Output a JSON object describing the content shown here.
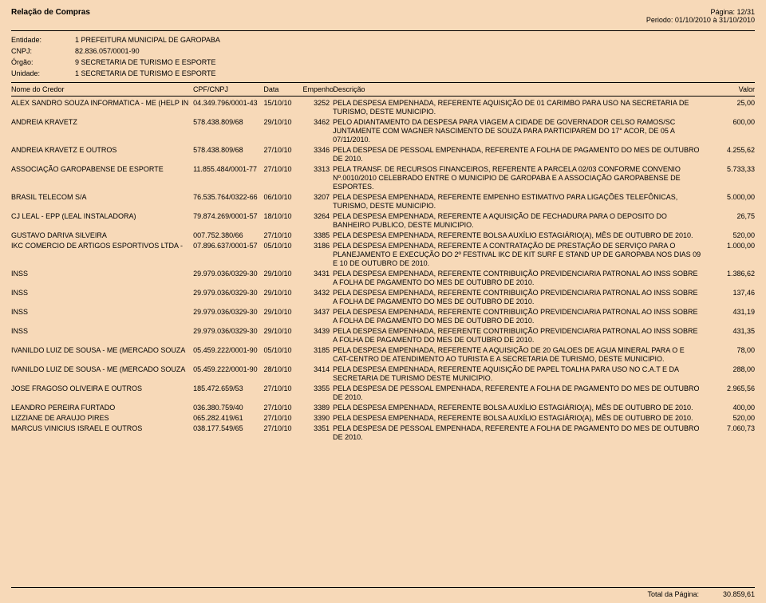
{
  "colors": {
    "page_background": "#f7d9b8",
    "text": "#000000",
    "divider": "#000000"
  },
  "typography": {
    "base_font_size_pt": 7,
    "title_font_size_pt": 8,
    "font_family": "Arial"
  },
  "page_meta": {
    "title": "Relação de Compras",
    "page_label": "Página: 12/31",
    "period_label": "Periodo: 01/10/2010 à 31/10/2010"
  },
  "entity": {
    "entidade_label": "Entidade:",
    "entidade_value": "1 PREFEITURA MUNICIPAL DE GAROPABA",
    "cnpj_label": "CNPJ:",
    "cnpj_value": "82.836.057/0001-90",
    "orgao_label": "Órgão:",
    "orgao_value": "9 SECRETARIA DE TURISMO E ESPORTE",
    "unidade_label": "Unidade:",
    "unidade_value": "1 SECRETARIA DE TURISMO E ESPORTE"
  },
  "columns": {
    "credor": "Nome do Credor",
    "cpf": "CPF/CNPJ",
    "data": "Data",
    "empenho": "Empenho",
    "descricao": "Descrição",
    "valor": "Valor"
  },
  "rows": [
    {
      "credor": "ALEX SANDRO SOUZA INFORMATICA - ME (HELP IN",
      "cpf": "04.349.796/0001-43",
      "data": "15/10/10",
      "emp": "3252",
      "desc": "PELA DESPESA EMPENHADA, REFERENTE AQUISIÇÃO DE 01 CARIMBO PARA USO NA SECRETARIA DE TURISMO, DESTE MUNICIPIO.",
      "valor": "25,00"
    },
    {
      "credor": "ANDREIA KRAVETZ",
      "cpf": "578.438.809/68",
      "data": "29/10/10",
      "emp": "3462",
      "desc": "PELO ADIANTAMENTO DA DESPESA PARA VIAGEM A CIDADE DE GOVERNADOR CELSO RAMOS/SC JUNTAMENTE COM WAGNER NASCIMENTO DE SOUZA PARA PARTICIPAREM DO 17° ACOR, DE 05 A 07/11/2010.",
      "valor": "600,00"
    },
    {
      "credor": "ANDREIA KRAVETZ E OUTROS",
      "cpf": "578.438.809/68",
      "data": "27/10/10",
      "emp": "3346",
      "desc": "PELA DESPESA DE PESSOAL EMPENHADA, REFERENTE A FOLHA DE PAGAMENTO DO MES DE OUTUBRO DE 2010.",
      "valor": "4.255,62"
    },
    {
      "credor": "ASSOCIAÇÃO GAROPABENSE DE ESPORTE",
      "cpf": "11.855.484/0001-77",
      "data": "27/10/10",
      "emp": "3313",
      "desc": "PELA TRANSF. DE RECURSOS FINANCEIROS, REFERENTE A PARCELA 02/03 CONFORME CONVENIO Nº.0010/2010 CELEBRADO ENTRE O MUNICIPIO DE GAROPABA E A ASSOCIAÇÃO GAROPABENSE DE ESPORTES.",
      "valor": "5.733,33"
    },
    {
      "credor": "BRASIL TELECOM S/A",
      "cpf": "76.535.764/0322-66",
      "data": "06/10/10",
      "emp": "3207",
      "desc": "PELA DESPESA EMPENHADA, REFERENTE EMPENHO ESTIMATIVO PARA LIGAÇÕES TELEFÔNICAS, TURISMO, DESTE MUNICIPIO.",
      "valor": "5.000,00"
    },
    {
      "credor": "CJ LEAL - EPP (LEAL INSTALADORA)",
      "cpf": "79.874.269/0001-57",
      "data": "18/10/10",
      "emp": "3264",
      "desc": "PELA DESPESA EMPENHADA, REFERENTE A AQUISIÇÃO DE FECHADURA PARA O DEPOSITO DO BANHEIRO PUBLICO, DESTE MUNICIPIO.",
      "valor": "26,75"
    },
    {
      "credor": "GUSTAVO DARIVA SILVEIRA",
      "cpf": "007.752.380/66",
      "data": "27/10/10",
      "emp": "3385",
      "desc": "PELA DESPESA EMPENHADA, REFERENTE BOLSA AUXÍLIO ESTAGIÁRIO(A), MÊS DE OUTUBRO DE 2010.",
      "valor": "520,00"
    },
    {
      "credor": "IKC COMERCIO DE ARTIGOS ESPORTIVOS LTDA -",
      "cpf": "07.896.637/0001-57",
      "data": "05/10/10",
      "emp": "3186",
      "desc": "PELA DESPESA EMPENHADA, REFERENTE A CONTRATAÇÃO DE PRESTAÇÃO DE SERVIÇO PARA O PLANEJAMENTO E EXECUÇÃO DO 2º FESTIVAL IKC DE KIT SURF E STAND UP DE GAROPABA NOS DIAS 09 E 10 DE OUTUBRO DE 2010.",
      "valor": "1.000,00"
    },
    {
      "credor": "INSS",
      "cpf": "29.979.036/0329-30",
      "data": "29/10/10",
      "emp": "3431",
      "desc": "PELA DESPESA EMPENHADA, REFERENTE CONTRIBUIÇÃO PREVIDENCIARIA PATRONAL AO INSS SOBRE A FOLHA DE PAGAMENTO DO MES DE OUTUBRO DE 2010.",
      "valor": "1.386,62"
    },
    {
      "credor": "INSS",
      "cpf": "29.979.036/0329-30",
      "data": "29/10/10",
      "emp": "3432",
      "desc": "PELA DESPESA EMPENHADA, REFERENTE CONTRIBUIÇÃO PREVIDENCIARIA PATRONAL AO INSS SOBRE A FOLHA DE PAGAMENTO DO MES DE OUTUBRO DE 2010.",
      "valor": "137,46"
    },
    {
      "credor": "INSS",
      "cpf": "29.979.036/0329-30",
      "data": "29/10/10",
      "emp": "3437",
      "desc": "PELA DESPESA EMPENHADA, REFERENTE CONTRIBUIÇÃO PREVIDENCIARIA PATRONAL AO INSS SOBRE A FOLHA DE PAGAMENTO DO MES DE OUTUBRO DE 2010.",
      "valor": "431,19"
    },
    {
      "credor": "INSS",
      "cpf": "29.979.036/0329-30",
      "data": "29/10/10",
      "emp": "3439",
      "desc": "PELA DESPESA EMPENHADA, REFERENTE CONTRIBUIÇÃO PREVIDENCIARIA PATRONAL AO INSS SOBRE A FOLHA DE PAGAMENTO DO MES DE OUTUBRO DE 2010.",
      "valor": "431,35"
    },
    {
      "credor": "IVANILDO LUIZ DE SOUSA - ME (MERCADO SOUZA",
      "cpf": "05.459.222/0001-90",
      "data": "05/10/10",
      "emp": "3185",
      "desc": "PELA DESPESA EMPENHADA, REFERENTE A AQUISIÇÃO DE 20 GALOES DE AGUA MINERAL PARA O E CAT-CENTRO DE ATENDIMENTO AO TURISTA E A SECRETARIA DE TURISMO, DESTE MUNICIPIO.",
      "valor": "78,00"
    },
    {
      "credor": "IVANILDO LUIZ DE SOUSA - ME (MERCADO SOUZA",
      "cpf": "05.459.222/0001-90",
      "data": "28/10/10",
      "emp": "3414",
      "desc": "PELA DESPESA EMPENHADA, REFERENTE AQUISIÇÃO DE PAPEL TOALHA PARA USO NO C.A.T E DA SECRETARIA DE TURISMO DESTE MUNICIPIO.",
      "valor": "288,00"
    },
    {
      "credor": "JOSE FRAGOSO OLIVEIRA E OUTROS",
      "cpf": "185.472.659/53",
      "data": "27/10/10",
      "emp": "3355",
      "desc": "PELA DESPESA DE PESSOAL EMPENHADA, REFERENTE A FOLHA DE PAGAMENTO DO MES DE OUTUBRO DE 2010.",
      "valor": "2.965,56"
    },
    {
      "credor": "LEANDRO PEREIRA FURTADO",
      "cpf": "036.380.759/40",
      "data": "27/10/10",
      "emp": "3389",
      "desc": "PELA DESPESA EMPENHADA, REFERENTE BOLSA AUXÍLIO ESTAGIÁRIO(A), MÊS DE OUTUBRO DE 2010.",
      "valor": "400,00"
    },
    {
      "credor": "LIZZIANE DE ARAUJO PIRES",
      "cpf": "065.282.419/61",
      "data": "27/10/10",
      "emp": "3390",
      "desc": "PELA DESPESA EMPENHADA, REFERENTE BOLSA AUXÍLIO ESTAGIÁRIO(A), MÊS DE OUTUBRO DE 2010.",
      "valor": "520,00"
    },
    {
      "credor": "MARCUS VINICIUS ISRAEL E OUTROS",
      "cpf": "038.177.549/65",
      "data": "27/10/10",
      "emp": "3351",
      "desc": "PELA DESPESA DE PESSOAL EMPENHADA, REFERENTE A FOLHA DE PAGAMENTO DO MES DE OUTUBRO DE 2010.",
      "valor": "7.060,73"
    }
  ],
  "footer": {
    "label": "Total da Página:",
    "value": "30.859,61"
  }
}
